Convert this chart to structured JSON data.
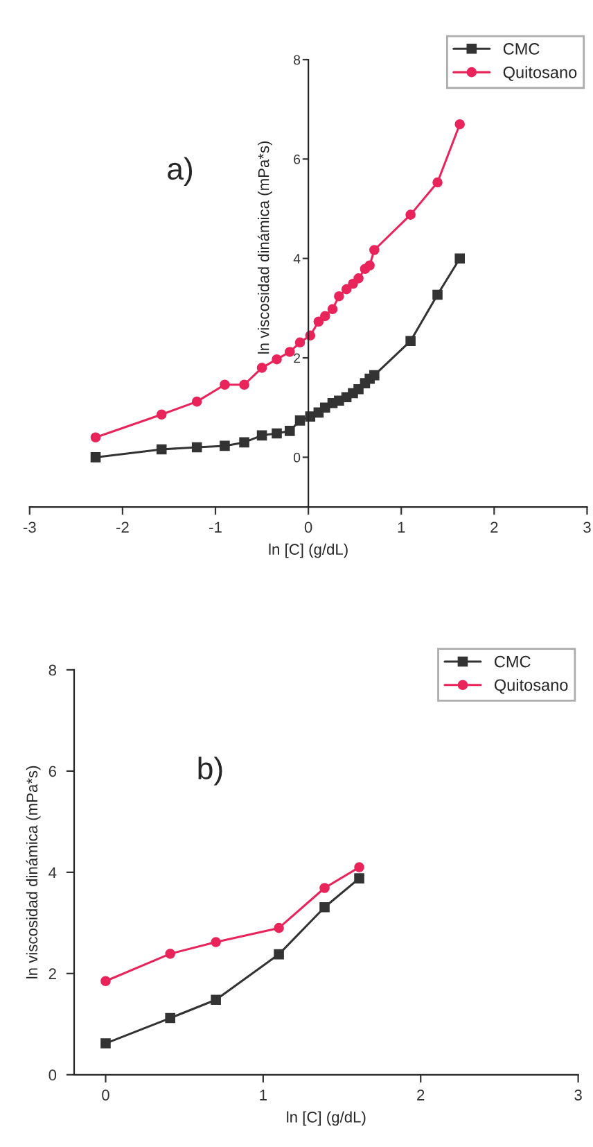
{
  "chart_data": [
    {
      "type": "line",
      "xlabel": "ln [C] (g/dL)",
      "ylabel": "ln viscosidad dinámica (mPa*s)",
      "annotations": [
        "a)"
      ],
      "xlim": [
        -3,
        3
      ],
      "xticks": [
        -3,
        -2,
        -1,
        0,
        1,
        2,
        3
      ],
      "ylim": [
        -1,
        8
      ],
      "yticks": [
        0,
        2,
        4,
        6,
        8
      ],
      "grid": false,
      "legend": "top right",
      "series": [
        {
          "name": "CMC",
          "color": "#333333",
          "marker": "square",
          "x": [
            -2.29,
            -1.58,
            -1.2,
            -0.9,
            -0.69,
            -0.5,
            -0.34,
            -0.2,
            -0.09,
            0.02,
            0.11,
            0.18,
            0.26,
            0.33,
            0.41,
            0.48,
            0.54,
            0.61,
            0.66,
            0.71,
            1.1,
            1.39,
            1.63
          ],
          "values": [
            0,
            0.16,
            0.2,
            0.23,
            0.3,
            0.44,
            0.48,
            0.53,
            0.74,
            0.82,
            0.9,
            1.0,
            1.09,
            1.14,
            1.21,
            1.29,
            1.37,
            1.49,
            1.58,
            1.65,
            2.34,
            3.27,
            4.0
          ]
        },
        {
          "name": "Quitosano",
          "color": "#e8245a",
          "marker": "circle",
          "x": [
            -2.29,
            -1.58,
            -1.2,
            -0.9,
            -0.69,
            -0.5,
            -0.34,
            -0.2,
            -0.09,
            0.02,
            0.11,
            0.18,
            0.26,
            0.33,
            0.41,
            0.48,
            0.54,
            0.61,
            0.66,
            0.71,
            1.1,
            1.39,
            1.63
          ],
          "values": [
            0.4,
            0.86,
            1.12,
            1.46,
            1.46,
            1.8,
            1.97,
            2.12,
            2.31,
            2.45,
            2.73,
            2.84,
            2.98,
            3.24,
            3.38,
            3.49,
            3.6,
            3.79,
            3.86,
            4.17,
            4.88,
            5.53,
            6.7
          ]
        }
      ]
    },
    {
      "type": "line",
      "xlabel": "ln [C] (g/dL)",
      "ylabel": "ln viscosidad dinámica (mPa*s)",
      "annotations": [
        "b)"
      ],
      "xlim": [
        -0.2,
        3
      ],
      "xticks": [
        0,
        1,
        2,
        3
      ],
      "ylim": [
        0,
        8
      ],
      "yticks": [
        0,
        2,
        4,
        6,
        8
      ],
      "grid": false,
      "legend": "top right",
      "series": [
        {
          "name": "CMC",
          "color": "#333333",
          "marker": "square",
          "x": [
            0,
            0.41,
            0.7,
            1.1,
            1.39,
            1.61
          ],
          "values": [
            0.62,
            1.12,
            1.48,
            2.38,
            3.31,
            3.88
          ]
        },
        {
          "name": "Quitosano",
          "color": "#e8245a",
          "marker": "circle",
          "x": [
            0,
            0.41,
            0.7,
            1.1,
            1.39,
            1.61
          ],
          "values": [
            1.85,
            2.39,
            2.62,
            2.9,
            3.69,
            4.1
          ]
        }
      ]
    }
  ]
}
